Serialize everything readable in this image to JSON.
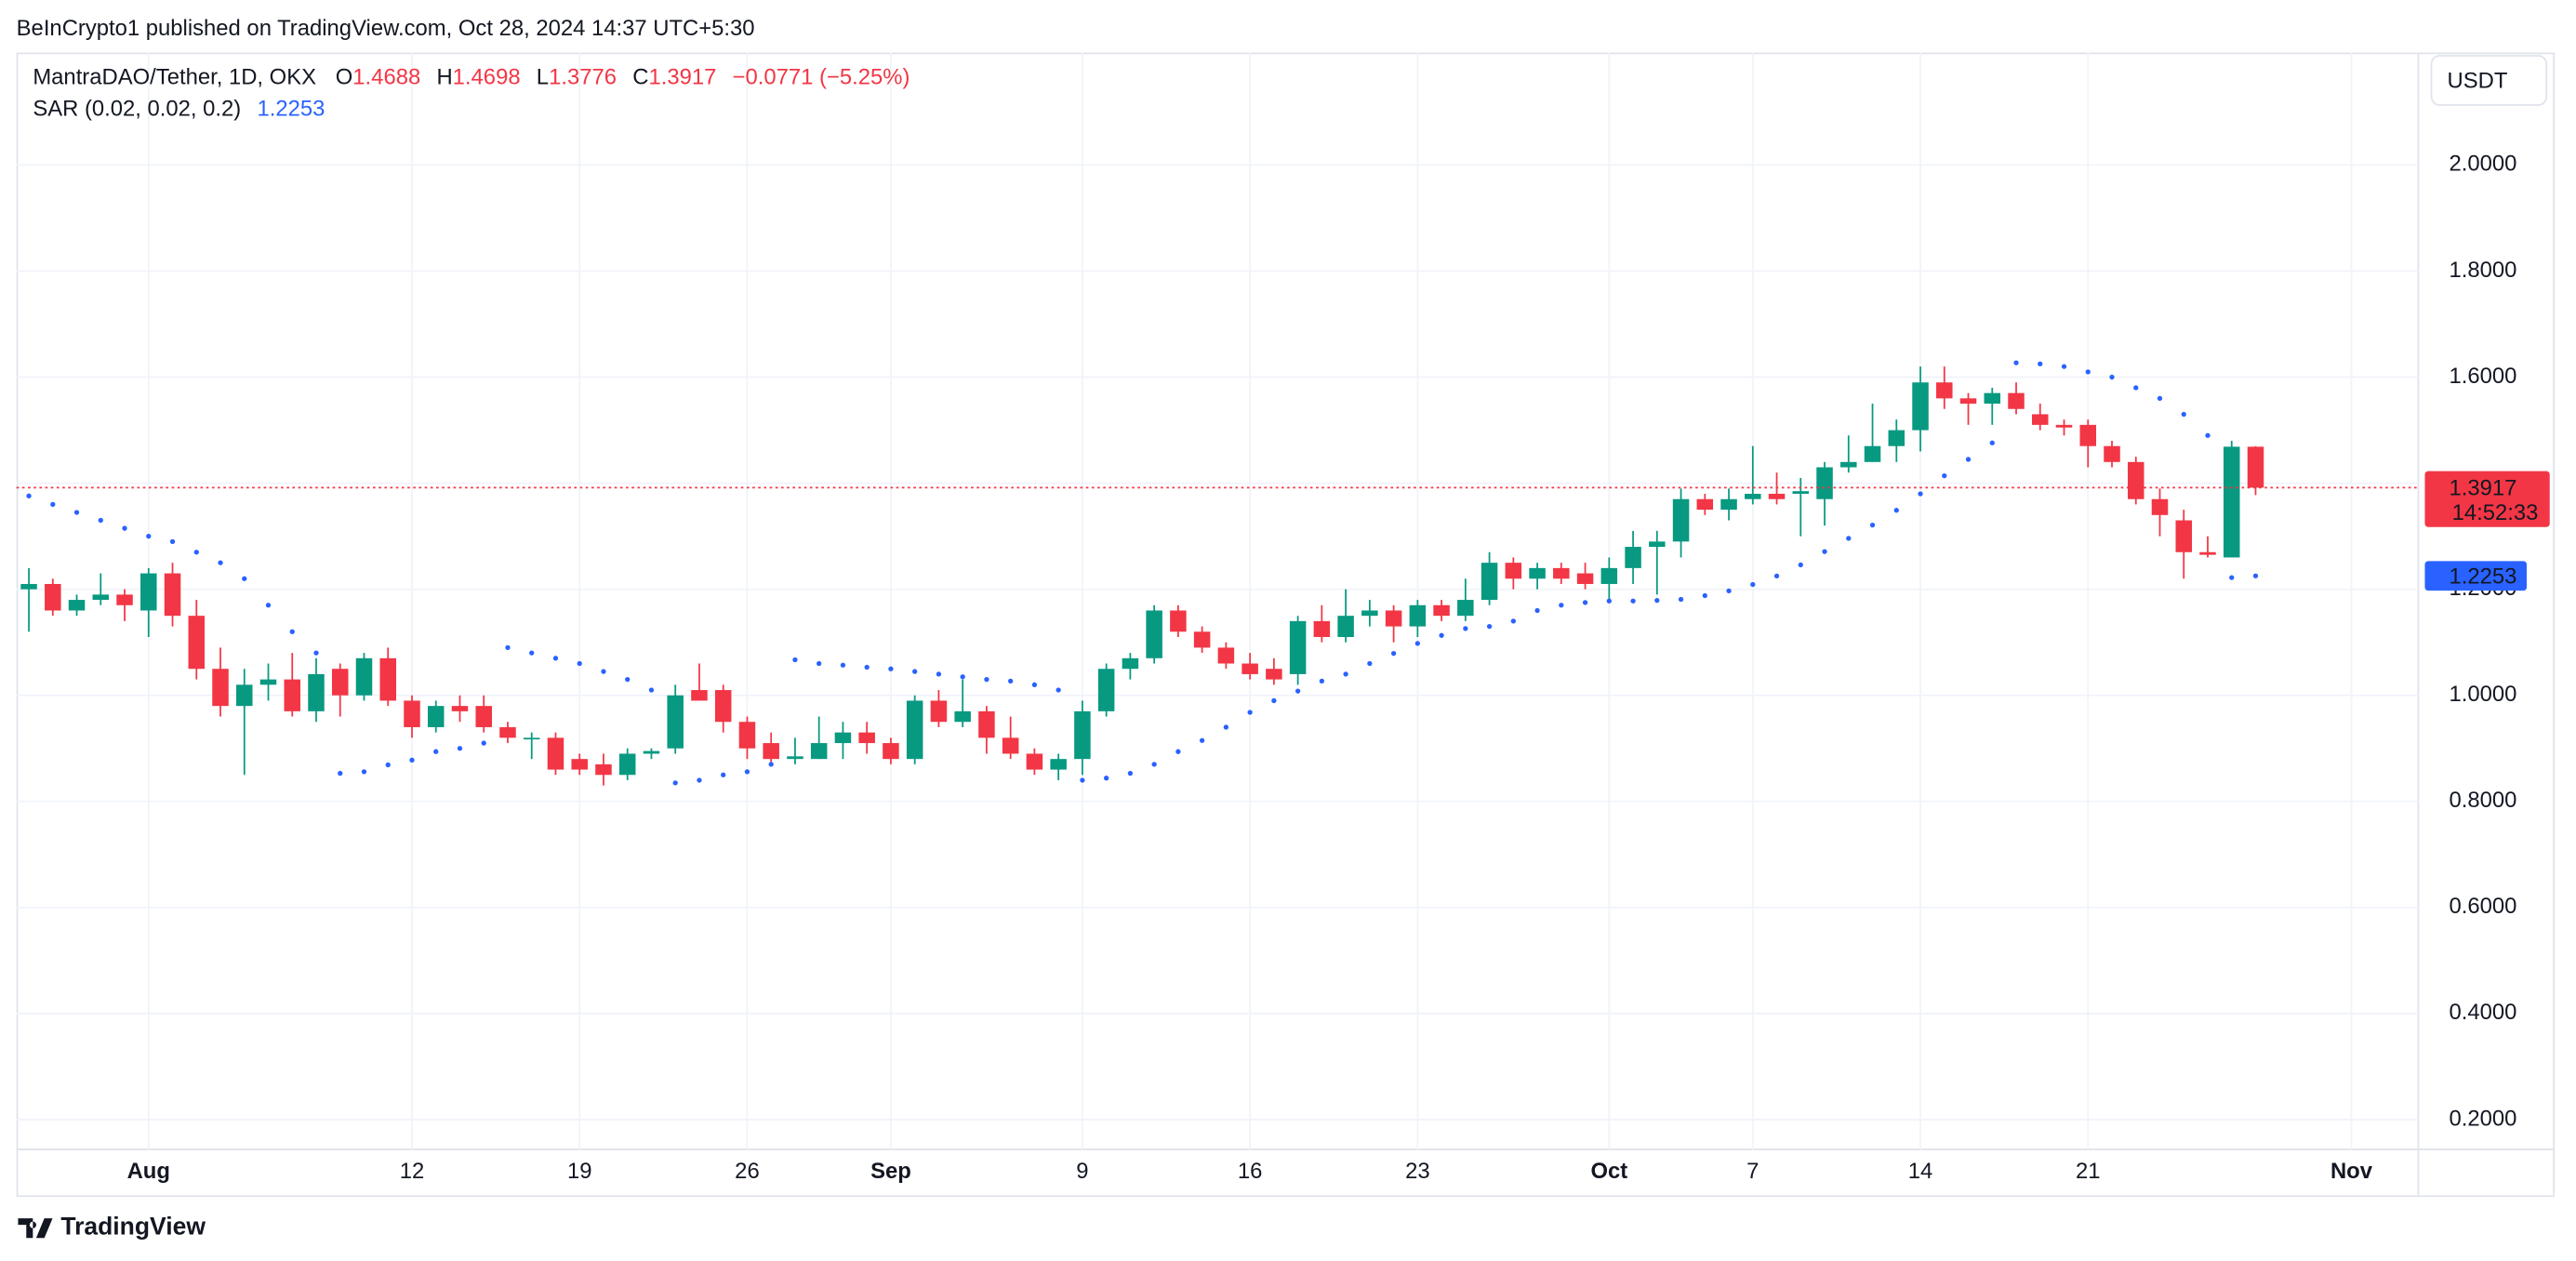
{
  "header": "BeInCrypto1 published on TradingView.com, Oct 28, 2024 14:37 UTC+5:30",
  "footer": "TradingView",
  "chart_data": {
    "type": "candlestick",
    "title": "MantraDAO/Tether, 1D, OKX",
    "ohlc_labels": [
      "O",
      "H",
      "L",
      "C"
    ],
    "change_label": "−0.0771 (−5.25%)",
    "currency": "USDT",
    "countdown": "14:52:33",
    "up_color": "#089981",
    "down_color": "#f23645",
    "grid": true,
    "x": [
      "2024-07-27",
      "2024-07-28",
      "2024-07-29",
      "2024-07-30",
      "2024-07-31",
      "2024-08-01",
      "2024-08-02",
      "2024-08-03",
      "2024-08-04",
      "2024-08-05",
      "2024-08-06",
      "2024-08-07",
      "2024-08-08",
      "2024-08-09",
      "2024-08-10",
      "2024-08-11",
      "2024-08-12",
      "2024-08-13",
      "2024-08-14",
      "2024-08-15",
      "2024-08-16",
      "2024-08-17",
      "2024-08-18",
      "2024-08-19",
      "2024-08-20",
      "2024-08-21",
      "2024-08-22",
      "2024-08-23",
      "2024-08-24",
      "2024-08-25",
      "2024-08-26",
      "2024-08-27",
      "2024-08-28",
      "2024-08-29",
      "2024-08-30",
      "2024-08-31",
      "2024-09-01",
      "2024-09-02",
      "2024-09-03",
      "2024-09-04",
      "2024-09-05",
      "2024-09-06",
      "2024-09-07",
      "2024-09-08",
      "2024-09-09",
      "2024-09-10",
      "2024-09-11",
      "2024-09-12",
      "2024-09-13",
      "2024-09-14",
      "2024-09-15",
      "2024-09-16",
      "2024-09-17",
      "2024-09-18",
      "2024-09-19",
      "2024-09-20",
      "2024-09-21",
      "2024-09-22",
      "2024-09-23",
      "2024-09-24",
      "2024-09-25",
      "2024-09-26",
      "2024-09-27",
      "2024-09-28",
      "2024-09-29",
      "2024-09-30",
      "2024-10-01",
      "2024-10-02",
      "2024-10-03",
      "2024-10-04",
      "2024-10-05",
      "2024-10-06",
      "2024-10-07",
      "2024-10-08",
      "2024-10-09",
      "2024-10-10",
      "2024-10-11",
      "2024-10-12",
      "2024-10-13",
      "2024-10-14",
      "2024-10-15",
      "2024-10-16",
      "2024-10-17",
      "2024-10-18",
      "2024-10-19",
      "2024-10-20",
      "2024-10-21",
      "2024-10-22",
      "2024-10-23",
      "2024-10-24",
      "2024-10-25",
      "2024-10-26",
      "2024-10-27",
      "2024-10-28"
    ],
    "open": [
      1.2,
      1.21,
      1.16,
      1.18,
      1.19,
      1.16,
      1.23,
      1.15,
      1.05,
      0.98,
      1.02,
      1.03,
      0.97,
      1.05,
      1.0,
      1.07,
      0.99,
      0.94,
      0.98,
      0.98,
      0.94,
      0.92,
      0.92,
      0.88,
      0.87,
      0.85,
      0.89,
      0.9,
      1.01,
      1.01,
      0.95,
      0.91,
      0.88,
      0.88,
      0.91,
      0.93,
      0.91,
      0.88,
      0.99,
      0.95,
      0.97,
      0.92,
      0.89,
      0.86,
      0.88,
      0.97,
      1.05,
      1.07,
      1.16,
      1.12,
      1.09,
      1.06,
      1.05,
      1.04,
      1.14,
      1.11,
      1.15,
      1.16,
      1.13,
      1.17,
      1.15,
      1.18,
      1.25,
      1.22,
      1.24,
      1.23,
      1.21,
      1.24,
      1.28,
      1.29,
      1.37,
      1.35,
      1.37,
      1.38,
      1.38,
      1.37,
      1.43,
      1.44,
      1.47,
      1.5,
      1.59,
      1.56,
      1.55,
      1.57,
      1.53,
      1.51,
      1.51,
      1.47,
      1.44,
      1.37,
      1.33,
      1.27,
      1.26,
      1.4688
    ],
    "high": [
      1.24,
      1.22,
      1.19,
      1.23,
      1.2,
      1.24,
      1.25,
      1.18,
      1.09,
      1.05,
      1.06,
      1.08,
      1.07,
      1.06,
      1.08,
      1.09,
      1.0,
      0.99,
      1.0,
      1.0,
      0.95,
      0.93,
      0.93,
      0.89,
      0.89,
      0.9,
      0.9,
      1.02,
      1.06,
      1.02,
      0.96,
      0.93,
      0.92,
      0.96,
      0.95,
      0.95,
      0.92,
      1.0,
      1.01,
      1.03,
      0.98,
      0.96,
      0.9,
      0.89,
      0.99,
      1.06,
      1.08,
      1.17,
      1.17,
      1.13,
      1.1,
      1.08,
      1.07,
      1.15,
      1.17,
      1.2,
      1.18,
      1.17,
      1.18,
      1.18,
      1.22,
      1.27,
      1.26,
      1.25,
      1.25,
      1.25,
      1.26,
      1.31,
      1.31,
      1.39,
      1.38,
      1.39,
      1.47,
      1.42,
      1.41,
      1.44,
      1.49,
      1.55,
      1.52,
      1.62,
      1.62,
      1.57,
      1.58,
      1.59,
      1.55,
      1.52,
      1.52,
      1.48,
      1.45,
      1.39,
      1.35,
      1.3,
      1.48,
      1.4698
    ],
    "low": [
      1.12,
      1.15,
      1.15,
      1.17,
      1.14,
      1.11,
      1.13,
      1.03,
      0.96,
      0.85,
      0.99,
      0.96,
      0.95,
      0.96,
      0.99,
      0.98,
      0.92,
      0.93,
      0.95,
      0.93,
      0.91,
      0.88,
      0.85,
      0.85,
      0.83,
      0.84,
      0.88,
      0.89,
      0.99,
      0.93,
      0.88,
      0.87,
      0.87,
      0.88,
      0.88,
      0.89,
      0.87,
      0.87,
      0.94,
      0.94,
      0.89,
      0.88,
      0.85,
      0.84,
      0.85,
      0.96,
      1.03,
      1.06,
      1.11,
      1.08,
      1.05,
      1.03,
      1.02,
      1.02,
      1.1,
      1.1,
      1.13,
      1.1,
      1.11,
      1.14,
      1.14,
      1.17,
      1.2,
      1.2,
      1.21,
      1.2,
      1.18,
      1.21,
      1.19,
      1.26,
      1.34,
      1.33,
      1.36,
      1.36,
      1.3,
      1.32,
      1.42,
      1.44,
      1.44,
      1.46,
      1.54,
      1.51,
      1.51,
      1.53,
      1.5,
      1.49,
      1.43,
      1.43,
      1.36,
      1.3,
      1.22,
      1.26,
      1.26,
      1.3776
    ],
    "close": [
      1.21,
      1.16,
      1.18,
      1.19,
      1.17,
      1.23,
      1.15,
      1.05,
      0.98,
      1.02,
      1.03,
      0.97,
      1.04,
      1.0,
      1.07,
      0.99,
      0.94,
      0.98,
      0.97,
      0.94,
      0.92,
      0.92,
      0.86,
      0.86,
      0.85,
      0.89,
      0.895,
      1.0,
      0.99,
      0.95,
      0.9,
      0.88,
      0.885,
      0.91,
      0.93,
      0.91,
      0.88,
      0.99,
      0.95,
      0.97,
      0.92,
      0.89,
      0.86,
      0.88,
      0.97,
      1.05,
      1.07,
      1.16,
      1.12,
      1.09,
      1.06,
      1.04,
      1.03,
      1.14,
      1.11,
      1.15,
      1.16,
      1.13,
      1.17,
      1.15,
      1.18,
      1.25,
      1.22,
      1.24,
      1.22,
      1.21,
      1.24,
      1.28,
      1.29,
      1.37,
      1.35,
      1.37,
      1.38,
      1.37,
      1.385,
      1.43,
      1.44,
      1.47,
      1.5,
      1.59,
      1.56,
      1.55,
      1.57,
      1.54,
      1.51,
      1.505,
      1.47,
      1.44,
      1.37,
      1.34,
      1.27,
      1.265,
      1.4688,
      1.3917
    ],
    "sar": {
      "name": "SAR (0.02, 0.02, 0.2)",
      "color": "#2962ff",
      "values": [
        1.376,
        1.36,
        1.345,
        1.33,
        1.315,
        1.3,
        1.29,
        1.27,
        1.25,
        1.22,
        1.17,
        1.12,
        1.08,
        0.853,
        0.856,
        0.869,
        0.878,
        0.894,
        0.9,
        0.91,
        1.09,
        1.08,
        1.07,
        1.06,
        1.045,
        1.03,
        1.01,
        0.835,
        0.84,
        0.85,
        0.856,
        0.87,
        1.067,
        1.06,
        1.057,
        1.053,
        1.05,
        1.045,
        1.04,
        1.035,
        1.03,
        1.027,
        1.02,
        1.01,
        0.84,
        0.844,
        0.853,
        0.87,
        0.894,
        0.915,
        0.94,
        0.968,
        0.99,
        1.008,
        1.027,
        1.04,
        1.06,
        1.079,
        1.098,
        1.113,
        1.126,
        1.13,
        1.14,
        1.16,
        1.17,
        1.175,
        1.178,
        1.178,
        1.179,
        1.181,
        1.188,
        1.197,
        1.209,
        1.225,
        1.246,
        1.271,
        1.296,
        1.321,
        1.349,
        1.38,
        1.414,
        1.445,
        1.476,
        1.627,
        1.625,
        1.62,
        1.61,
        1.6,
        1.58,
        1.56,
        1.53,
        1.49,
        1.222,
        1.2253
      ]
    },
    "xlim": [
      "2024-07-26",
      "2024-11-04"
    ],
    "xticks": [
      {
        "value": "2024-08-01",
        "label": "Aug"
      },
      {
        "value": "2024-08-12",
        "label": "12"
      },
      {
        "value": "2024-08-19",
        "label": "19"
      },
      {
        "value": "2024-08-26",
        "label": "26"
      },
      {
        "value": "2024-09-01",
        "label": "Sep"
      },
      {
        "value": "2024-09-09",
        "label": "9"
      },
      {
        "value": "2024-09-16",
        "label": "16"
      },
      {
        "value": "2024-09-23",
        "label": "23"
      },
      {
        "value": "2024-10-01",
        "label": "Oct"
      },
      {
        "value": "2024-10-07",
        "label": "7"
      },
      {
        "value": "2024-10-14",
        "label": "14"
      },
      {
        "value": "2024-10-21",
        "label": "21"
      },
      {
        "value": "2024-11-01",
        "label": "Nov"
      }
    ],
    "ylim": [
      0.144,
      2.212
    ],
    "yticks": [
      {
        "value": 0.2,
        "label": "0.2000"
      },
      {
        "value": 0.4,
        "label": "0.4000"
      },
      {
        "value": 0.6,
        "label": "0.6000"
      },
      {
        "value": 0.8,
        "label": "0.8000"
      },
      {
        "value": 1.0,
        "label": "1.0000"
      },
      {
        "value": 1.2,
        "label": "1.2000"
      },
      {
        "value": 1.4,
        "label": "1.4000"
      },
      {
        "value": 1.6,
        "label": "1.6000"
      },
      {
        "value": 1.8,
        "label": "1.8000"
      },
      {
        "value": 2.0,
        "label": "2.0000"
      }
    ]
  }
}
